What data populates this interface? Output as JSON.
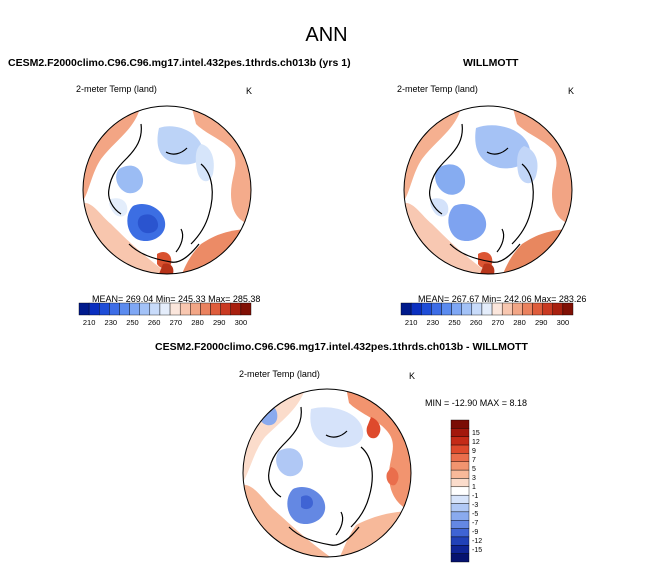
{
  "figure": {
    "title": "ANN"
  },
  "panels": {
    "model": {
      "case_title": "CESM2.F2000climo.C96.C96.mg17.intel.432pes.1thrds.ch013b (yrs 1)",
      "variable": "2-meter Temp (land)",
      "units": "K",
      "stats": "MEAN= 269.04  Min= 245.33  Max= 285.38"
    },
    "obs": {
      "case_title": "WILLMOTT",
      "variable": "2-meter Temp (land)",
      "units": "K",
      "stats": "MEAN= 267.67  Min= 242.06  Max= 283.26"
    },
    "diff": {
      "case_title": "CESM2.F2000climo.C96.C96.mg17.intel.432pes.1thrds.ch013b - WILLMOTT",
      "variable": "2-meter Temp (land)",
      "units": "K",
      "stats": "MIN = -12.90 MAX =   8.18"
    }
  },
  "colorbars": {
    "abs": {
      "orientation": "horizontal",
      "ticks": [
        "210",
        "230",
        "250",
        "260",
        "270",
        "280",
        "290",
        "300"
      ],
      "colors": [
        "#001a8c",
        "#0a2fc0",
        "#1f4ed8",
        "#3d6de6",
        "#5b8bef",
        "#7fa7f4",
        "#a3c2f7",
        "#c8dbfa",
        "#e4edfb",
        "#fbe6dc",
        "#f8c7b0",
        "#f2a686",
        "#ea825f",
        "#de5d3c",
        "#c93a22",
        "#a8200f",
        "#801005"
      ]
    },
    "diff": {
      "orientation": "vertical",
      "ticks": [
        "15",
        "12",
        "9",
        "7",
        "5",
        "3",
        "1",
        "-1",
        "-3",
        "-5",
        "-7",
        "-9",
        "-12",
        "-15"
      ],
      "colors": [
        "#7a0d05",
        "#a3180c",
        "#c42b17",
        "#de4a2c",
        "#ea6e4c",
        "#f2946f",
        "#f7b99a",
        "#fbdccb",
        "#ffffff",
        "#d6e3fa",
        "#b0c8f5",
        "#8aaaee",
        "#6488e3",
        "#3f64d4",
        "#2141b8",
        "#0f2496",
        "#06126f"
      ]
    }
  }
}
